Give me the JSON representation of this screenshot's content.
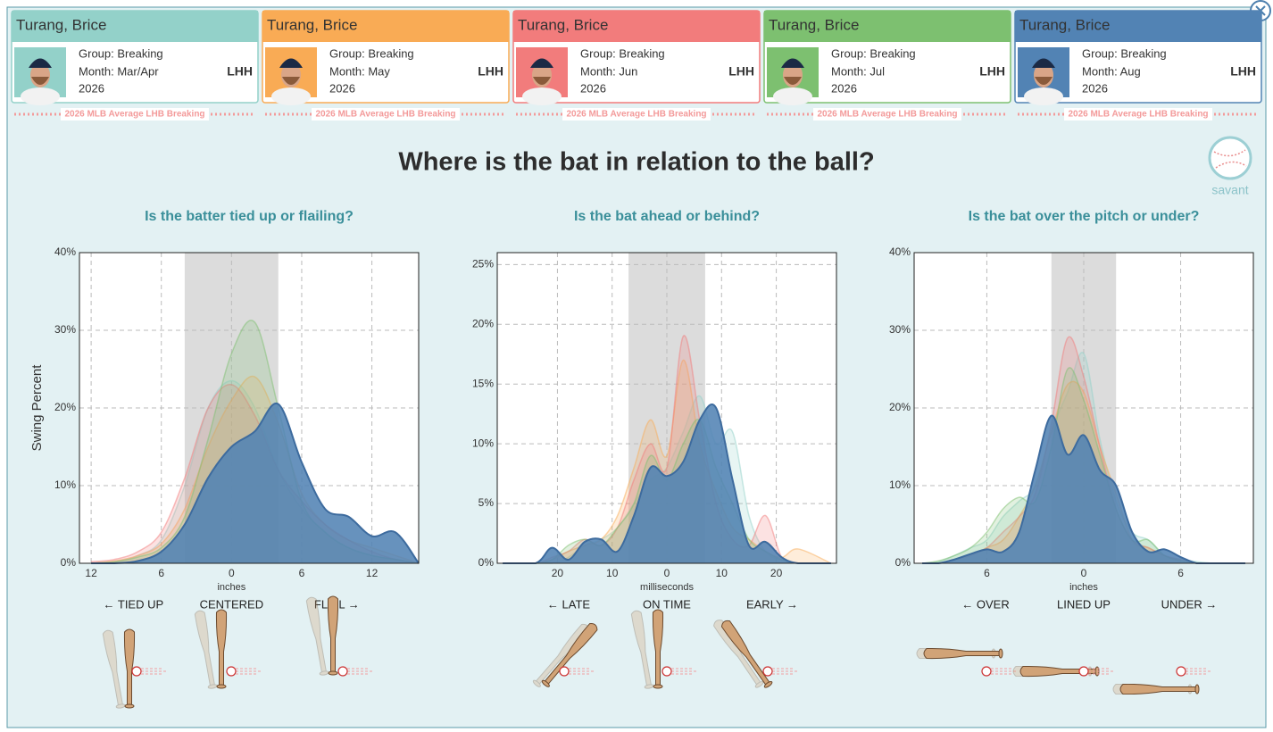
{
  "cards": [
    {
      "name": "Turang, Brice",
      "group": "Group: Breaking",
      "month": "Month: Mar/Apr",
      "year": "2026",
      "hand": "LHH",
      "color": "#93d1c9"
    },
    {
      "name": "Turang, Brice",
      "group": "Group: Breaking",
      "month": "Month: May",
      "year": "2026",
      "hand": "LHH",
      "color": "#f9ab55"
    },
    {
      "name": "Turang, Brice",
      "group": "Group: Breaking",
      "month": "Month: Jun",
      "year": "2026",
      "hand": "LHH",
      "color": "#f27c7c"
    },
    {
      "name": "Turang, Brice",
      "group": "Group: Breaking",
      "month": "Month: Jul",
      "year": "2026",
      "hand": "LHH",
      "color": "#7dc070"
    },
    {
      "name": "Turang, Brice",
      "group": "Group: Breaking",
      "month": "Month: Aug",
      "year": "2026",
      "hand": "LHH",
      "color": "#5283b4"
    }
  ],
  "average_label": "2026 MLB Average LHB Breaking",
  "title": "Where is the bat in relation to the ball?",
  "logo": "savant",
  "chart_data": [
    {
      "type": "area",
      "title": "Is the batter tied up or flailing?",
      "y_label": "Swing Percent",
      "x_label": "inches",
      "direction_labels": [
        "← TIED UP",
        "CENTERED",
        "FLAIL →"
      ],
      "shade": [
        -4,
        4
      ],
      "xlim": [
        -13,
        16
      ],
      "xticks": [
        {
          "value": -12,
          "label": "12"
        },
        {
          "value": -6,
          "label": "6"
        },
        0,
        6,
        12
      ],
      "ylim": [
        0,
        40
      ],
      "yticks": [
        {
          "value": 0,
          "label": "0%"
        },
        {
          "value": 10,
          "label": "10%"
        },
        {
          "value": 20,
          "label": "20%"
        },
        {
          "value": 30,
          "label": "30%"
        },
        {
          "value": 40,
          "label": "40%"
        }
      ],
      "x": [
        -12,
        -10,
        -8,
        -6,
        -4,
        -2,
        0,
        2,
        4,
        6,
        8,
        10,
        12,
        14,
        16
      ],
      "series": [
        {
          "color": "#93d1c9",
          "values": [
            0,
            0.2,
            1,
            3,
            10,
            20,
            23.5,
            20,
            12,
            7,
            4,
            2,
            1,
            0.5,
            0
          ]
        },
        {
          "color": "#f9ab55",
          "values": [
            0,
            0.3,
            1,
            2.5,
            7,
            15,
            21,
            24,
            18,
            9,
            5,
            3,
            2,
            1,
            0
          ]
        },
        {
          "color": "#f27c7c",
          "values": [
            0.2,
            0.5,
            1.5,
            4,
            11,
            20,
            23,
            19,
            12,
            8,
            5,
            3,
            1.5,
            0.5,
            0
          ]
        },
        {
          "color": "#7dc070",
          "values": [
            0,
            0.2,
            0.8,
            2,
            6,
            16,
            27,
            31,
            20,
            8,
            4,
            2,
            1,
            0.5,
            0
          ]
        },
        {
          "color": "#5283b4",
          "values": [
            0,
            0,
            0.3,
            1.5,
            5,
            11,
            15,
            17,
            20.5,
            13,
            7,
            6,
            3.5,
            4,
            0
          ]
        }
      ]
    },
    {
      "type": "area",
      "title": "Is the bat ahead or behind?",
      "x_label": "milliseconds",
      "direction_labels": [
        "← LATE",
        "ON TIME",
        "EARLY →"
      ],
      "shade": [
        -7,
        7
      ],
      "xlim": [
        -31,
        31
      ],
      "xticks": [
        {
          "value": -20,
          "label": "20"
        },
        {
          "value": -10,
          "label": "10"
        },
        0,
        10,
        20
      ],
      "ylim": [
        0,
        26
      ],
      "yticks": [
        {
          "value": 0,
          "label": "0%"
        },
        {
          "value": 5,
          "label": "5%"
        },
        {
          "value": 10,
          "label": "10%"
        },
        {
          "value": 15,
          "label": "15%"
        },
        {
          "value": 20,
          "label": "20%"
        },
        {
          "value": 25,
          "label": "25%"
        }
      ],
      "x": [
        -30,
        -24,
        -21,
        -18,
        -15,
        -12,
        -9,
        -6,
        -3,
        0,
        3,
        6,
        9,
        12,
        15,
        18,
        21,
        24,
        30
      ],
      "series": [
        {
          "color": "#93d1c9",
          "values": [
            0,
            0,
            0,
            0.5,
            1.5,
            2,
            3,
            5,
            7,
            8,
            11,
            14,
            10,
            11,
            4,
            1,
            0.3,
            0,
            0
          ]
        },
        {
          "color": "#f9ab55",
          "values": [
            0,
            0,
            0.3,
            1,
            1.5,
            2,
            4,
            8,
            12,
            9,
            17,
            10,
            6,
            3,
            2,
            1,
            0.5,
            1.2,
            0
          ]
        },
        {
          "color": "#f27c7c",
          "values": [
            0,
            0,
            0.5,
            1,
            2,
            1.5,
            3,
            7,
            10,
            8,
            19,
            12,
            5,
            2,
            1.5,
            4,
            0.5,
            0,
            0
          ]
        },
        {
          "color": "#7dc070",
          "values": [
            0,
            0,
            0.3,
            1.5,
            2,
            1.5,
            3,
            5,
            9,
            7,
            10,
            12,
            8,
            5,
            2,
            1,
            0.3,
            0,
            0
          ]
        },
        {
          "color": "#5283b4",
          "values": [
            0,
            0,
            1.3,
            0.3,
            1.8,
            2,
            1,
            4,
            8,
            7.3,
            8.5,
            12,
            13,
            7,
            1.5,
            1.8,
            0.5,
            0,
            0
          ]
        }
      ]
    },
    {
      "type": "area",
      "title": "Is the bat over the pitch or under?",
      "x_label": "inches",
      "direction_labels": [
        "← OVER",
        "LINED UP",
        "UNDER →"
      ],
      "shade": [
        -2,
        2
      ],
      "xlim": [
        -10.5,
        10.5
      ],
      "xticks": [
        {
          "value": -6,
          "label": "6"
        },
        0,
        6
      ],
      "ylim": [
        0,
        40
      ],
      "yticks": [
        {
          "value": 0,
          "label": "0%"
        },
        {
          "value": 10,
          "label": "10%"
        },
        {
          "value": 20,
          "label": "20%"
        },
        {
          "value": 30,
          "label": "30%"
        },
        {
          "value": 40,
          "label": "40%"
        }
      ],
      "x": [
        -10,
        -9,
        -8,
        -7,
        -6,
        -5,
        -4,
        -3,
        -2,
        -1,
        0,
        1,
        2,
        3,
        4,
        5,
        6,
        7,
        8,
        9,
        10
      ],
      "series": [
        {
          "color": "#93d1c9",
          "values": [
            0,
            0.2,
            1,
            2,
            3,
            6,
            8,
            10,
            17,
            22,
            27,
            16,
            8,
            4,
            3,
            1,
            0.5,
            0.2,
            0,
            0,
            0
          ]
        },
        {
          "color": "#f9ab55",
          "values": [
            0,
            0,
            0.5,
            1,
            2,
            3,
            6,
            10,
            17,
            23,
            22,
            15,
            9,
            3,
            2,
            1,
            0.3,
            0,
            0,
            0,
            0
          ]
        },
        {
          "color": "#f27c7c",
          "values": [
            0,
            0,
            0.5,
            1,
            2,
            4,
            6,
            9,
            18,
            29,
            24,
            15,
            7,
            3,
            2,
            1,
            0.5,
            0,
            0,
            0,
            0
          ]
        },
        {
          "color": "#7dc070",
          "values": [
            0,
            0.3,
            1,
            2,
            4,
            7,
            8.5,
            8,
            15,
            25,
            21,
            14,
            7,
            3,
            3,
            1,
            0.3,
            0,
            0,
            0,
            0
          ]
        },
        {
          "color": "#5283b4",
          "values": [
            0,
            0,
            0.5,
            1.2,
            1.8,
            1.5,
            4,
            12,
            19,
            14,
            16.5,
            12,
            10,
            4,
            1.5,
            1.8,
            0.8,
            0,
            0,
            0,
            0
          ]
        }
      ]
    }
  ]
}
